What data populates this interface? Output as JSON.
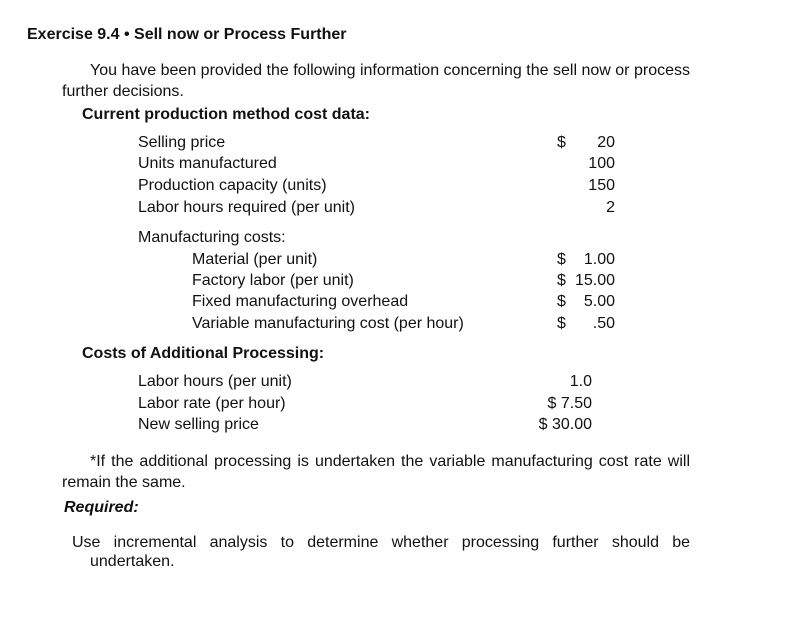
{
  "title": "Exercise 9.4 • Sell now or Process Further",
  "intro": "You have been provided the following information concerning the sell now or process further decisions.",
  "current": {
    "heading": "Current production method cost data:",
    "rows": [
      {
        "label": "Selling price",
        "symbol": "$",
        "amount": "20"
      },
      {
        "label": "Units manufactured",
        "value": "100"
      },
      {
        "label": "Production capacity (units)",
        "value": "150"
      },
      {
        "label": "Labor hours required (per unit)",
        "value": "2"
      }
    ],
    "mfg_heading": "Manufacturing costs:",
    "mfg_rows": [
      {
        "label": "Material (per unit)",
        "symbol": "$",
        "amount": "1.00"
      },
      {
        "label": "Factory labor (per unit)",
        "symbol": "$",
        "amount": "15.00"
      },
      {
        "label": "Fixed manufacturing overhead",
        "symbol": "$",
        "amount": "5.00"
      },
      {
        "label": "Variable manufacturing cost (per hour)",
        "symbol": "$",
        "amount": ".50"
      }
    ]
  },
  "additional": {
    "heading": "Costs of Additional Processing:",
    "rows": [
      {
        "label": "Labor hours (per unit)",
        "value": "1.0"
      },
      {
        "label": "Labor rate (per hour)",
        "value": "$ 7.50"
      },
      {
        "label": "New selling price",
        "value": "$ 30.00"
      }
    ]
  },
  "note": "*If the additional processing is undertaken the variable manufacturing cost rate will remain the same.",
  "required_label": "Required:",
  "instruction": "Use incremental analysis to determine whether processing further should be undertaken."
}
